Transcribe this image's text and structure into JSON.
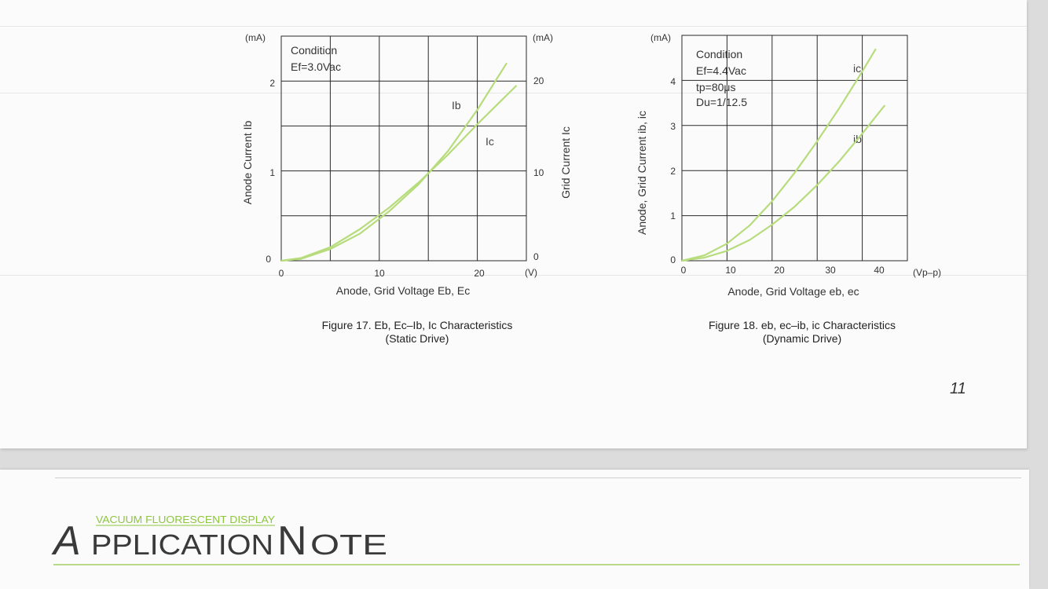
{
  "page_number": "11",
  "figure17": {
    "y_left_unit": "(mA)",
    "y_right_unit": "(mA)",
    "x_unit": "(V)",
    "y_left_ticks": [
      "0",
      "1",
      "2"
    ],
    "y_right_ticks": [
      "0",
      "10",
      "20"
    ],
    "x_ticks": [
      "0",
      "10",
      "20"
    ],
    "condition_title": "Condition",
    "condition_line1": "Ef=3.0Vac",
    "curve_label_ib": "Ib",
    "curve_label_ic": "Ic",
    "y_left_label": "Anode Current Ib",
    "y_right_label": "Grid Current Ic",
    "x_label": "Anode, Grid Voltage Eb, Ec",
    "caption_line1": "Figure 17. Eb, Ec–Ib, Ic Characteristics",
    "caption_line2": "(Static Drive)"
  },
  "figure18": {
    "y_unit": "(mA)",
    "x_unit": "(Vp–p)",
    "y_ticks": [
      "0",
      "1",
      "2",
      "3",
      "4"
    ],
    "x_ticks": [
      "0",
      "10",
      "20",
      "30",
      "40"
    ],
    "condition_title": "Condition",
    "condition_line1": "Ef=4.4Vac",
    "condition_line2": "tp=80μs",
    "condition_line3": "Du=1/12.5",
    "curve_label_ic": "ic",
    "curve_label_ib": "ib",
    "y_label": "Anode, Grid Current ib, ic",
    "x_label": "Anode, Grid Voltage eb, ec",
    "caption_line1": "Figure 18. eb, ec–ib, ic Characteristics",
    "caption_line2": "(Dynamic Drive)"
  },
  "footer": {
    "logo_small": "VACUUM FLUORESCENT DISPLAY",
    "logo_big_a": "A",
    "logo_big_pplication": "PPLICATION",
    "logo_big_n": "N",
    "logo_big_ote": "OTE"
  },
  "colors": {
    "curve": "#b7dc7c",
    "grid": "#2a2a2a",
    "rule": "#b9d98a",
    "logo_green": "#8dc63f",
    "logo_text": "#3a3a3a"
  },
  "chart_data": [
    {
      "type": "line",
      "title": "Figure 17. Eb, Ec–Ib, Ic Characteristics (Static Drive)",
      "xlabel": "Anode, Grid Voltage Eb, Ec",
      "ylabel": "Anode Current Ib",
      "y2label": "Grid Current Ic",
      "xlim": [
        0,
        25
      ],
      "ylim": [
        0,
        2.5
      ],
      "y2lim": [
        0,
        25
      ],
      "grid": true,
      "series": [
        {
          "name": "Ib",
          "axis": "left",
          "x": [
            0,
            2,
            5,
            8,
            11,
            14,
            17,
            20,
            23
          ],
          "y": [
            0,
            0.02,
            0.13,
            0.3,
            0.55,
            0.85,
            1.22,
            1.68,
            2.2
          ]
        },
        {
          "name": "Ic",
          "axis": "right",
          "x": [
            0,
            2,
            5,
            8,
            11,
            14,
            17,
            20,
            24
          ],
          "y": [
            0,
            0.3,
            1.5,
            3.5,
            5.9,
            8.7,
            11.8,
            15.2,
            19.5
          ]
        }
      ]
    },
    {
      "type": "line",
      "title": "Figure 18. eb, ec–ib, ic Characteristics (Dynamic Drive)",
      "xlabel": "Anode, Grid Voltage eb, ec",
      "ylabel": "Anode, Grid Current ib, ic",
      "xlim": [
        0,
        50
      ],
      "ylim": [
        0,
        5
      ],
      "grid": true,
      "series": [
        {
          "name": "ic",
          "x": [
            0,
            5,
            10,
            15,
            20,
            25,
            30,
            35,
            40,
            43
          ],
          "y": [
            0,
            0.12,
            0.38,
            0.78,
            1.32,
            1.95,
            2.65,
            3.4,
            4.2,
            4.7
          ]
        },
        {
          "name": "ib",
          "x": [
            0,
            5,
            10,
            15,
            20,
            25,
            30,
            35,
            40,
            45
          ],
          "y": [
            0,
            0.07,
            0.22,
            0.46,
            0.8,
            1.2,
            1.68,
            2.22,
            2.82,
            3.45
          ]
        }
      ]
    }
  ]
}
